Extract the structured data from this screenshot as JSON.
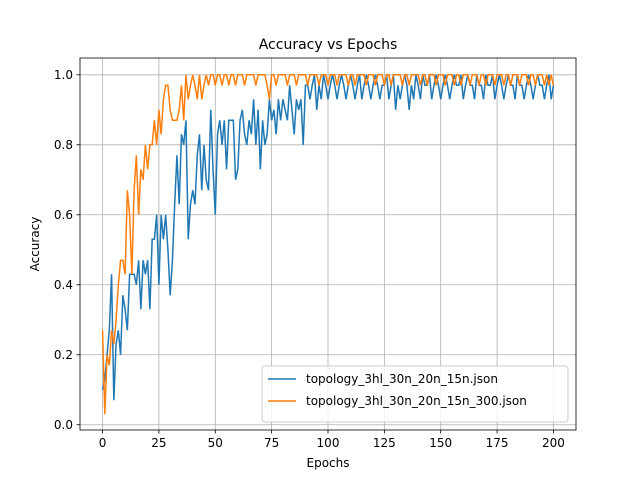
{
  "chart_data": {
    "type": "line",
    "title": "Accuracy vs Epochs",
    "x_label": "Epochs",
    "y_label": "Accuracy",
    "x": [
      0,
      1,
      2,
      3,
      4,
      5,
      6,
      7,
      8,
      9,
      10,
      11,
      12,
      13,
      14,
      15,
      16,
      17,
      18,
      19,
      20,
      21,
      22,
      23,
      24,
      25,
      26,
      27,
      28,
      29,
      30,
      31,
      32,
      33,
      34,
      35,
      36,
      37,
      38,
      39,
      40,
      41,
      42,
      43,
      44,
      45,
      46,
      47,
      48,
      49,
      50,
      51,
      52,
      53,
      54,
      55,
      56,
      57,
      58,
      59,
      60,
      61,
      62,
      63,
      64,
      65,
      66,
      67,
      68,
      69,
      70,
      71,
      72,
      73,
      74,
      75,
      76,
      77,
      78,
      79,
      80,
      81,
      82,
      83,
      84,
      85,
      86,
      87,
      88,
      89,
      90,
      91,
      92,
      93,
      94,
      95,
      96,
      97,
      98,
      99,
      100,
      101,
      102,
      103,
      104,
      105,
      106,
      107,
      108,
      109,
      110,
      111,
      112,
      113,
      114,
      115,
      116,
      117,
      118,
      119,
      120,
      121,
      122,
      123,
      124,
      125,
      126,
      127,
      128,
      129,
      130,
      131,
      132,
      133,
      134,
      135,
      136,
      137,
      138,
      139,
      140,
      141,
      142,
      143,
      144,
      145,
      146,
      147,
      148,
      149,
      150,
      151,
      152,
      153,
      154,
      155,
      156,
      157,
      158,
      159,
      160,
      161,
      162,
      163,
      164,
      165,
      166,
      167,
      168,
      169,
      170,
      171,
      172,
      173,
      174,
      175,
      176,
      177,
      178,
      179,
      180,
      181,
      182,
      183,
      184,
      185,
      186,
      187,
      188,
      189,
      190,
      191,
      192,
      193,
      194,
      195,
      196,
      197,
      198,
      199,
      200
    ],
    "series": [
      {
        "name": "topology_3hl_30n_20n_15n.json",
        "color": "#1f77b4",
        "values": [
          0.1,
          0.13,
          0.2,
          0.27,
          0.43,
          0.07,
          0.23,
          0.27,
          0.2,
          0.37,
          0.33,
          0.27,
          0.43,
          0.43,
          0.43,
          0.4,
          0.47,
          0.33,
          0.47,
          0.43,
          0.47,
          0.33,
          0.53,
          0.53,
          0.6,
          0.4,
          0.6,
          0.53,
          0.6,
          0.5,
          0.37,
          0.47,
          0.63,
          0.77,
          0.63,
          0.83,
          0.8,
          0.87,
          0.53,
          0.63,
          0.67,
          0.63,
          0.77,
          0.83,
          0.67,
          0.8,
          0.7,
          0.67,
          0.9,
          0.73,
          0.6,
          0.83,
          0.87,
          0.8,
          0.87,
          0.73,
          0.87,
          0.87,
          0.87,
          0.7,
          0.73,
          0.87,
          0.9,
          0.83,
          0.8,
          0.87,
          0.83,
          0.93,
          0.8,
          0.9,
          0.73,
          0.87,
          0.8,
          0.83,
          0.93,
          0.87,
          0.9,
          0.83,
          0.93,
          0.87,
          0.93,
          0.9,
          0.87,
          0.97,
          0.9,
          0.83,
          0.93,
          0.9,
          0.93,
          0.8,
          0.97,
          0.97,
          0.93,
          0.97,
          1.0,
          0.9,
          0.97,
          0.93,
          1.0,
          0.97,
          0.93,
          0.97,
          1.0,
          0.97,
          0.93,
          0.97,
          1.0,
          0.97,
          0.93,
          0.97,
          1.0,
          0.97,
          0.93,
          0.97,
          1.0,
          0.93,
          0.97,
          1.0,
          0.97,
          0.93,
          0.97,
          1.0,
          0.97,
          0.93,
          0.97,
          0.97,
          1.0,
          0.93,
          0.97,
          1.0,
          0.9,
          0.97,
          0.93,
          0.97,
          1.0,
          0.97,
          0.9,
          0.97,
          0.93,
          1.0,
          0.97,
          0.93,
          1.0,
          0.97,
          0.97,
          1.0,
          0.93,
          0.97,
          1.0,
          0.97,
          0.93,
          0.97,
          1.0,
          0.97,
          0.93,
          0.97,
          1.0,
          0.97,
          0.97,
          1.0,
          0.93,
          0.97,
          1.0,
          0.97,
          0.97,
          0.93,
          1.0,
          0.97,
          0.97,
          0.93,
          1.0,
          0.97,
          0.97,
          1.0,
          0.93,
          0.97,
          1.0,
          0.97,
          0.93,
          0.97,
          1.0,
          0.97,
          0.97,
          0.93,
          1.0,
          0.97,
          0.97,
          0.93,
          0.97,
          1.0,
          0.97,
          0.93,
          0.97,
          1.0,
          0.97,
          0.97,
          0.93,
          0.97,
          1.0,
          0.93,
          0.97
        ]
      },
      {
        "name": "topology_3hl_30n_20n_15n_300.json",
        "color": "#ff7f0e",
        "values": [
          0.27,
          0.03,
          0.2,
          0.17,
          0.27,
          0.23,
          0.3,
          0.4,
          0.47,
          0.47,
          0.43,
          0.67,
          0.6,
          0.43,
          0.67,
          0.77,
          0.6,
          0.73,
          0.7,
          0.8,
          0.73,
          0.8,
          0.8,
          0.87,
          0.8,
          0.9,
          0.83,
          0.93,
          0.97,
          0.97,
          0.9,
          0.87,
          0.87,
          0.87,
          0.9,
          0.97,
          0.87,
          1.0,
          0.93,
          0.97,
          1.0,
          0.97,
          0.93,
          1.0,
          0.93,
          0.97,
          1.0,
          0.97,
          1.0,
          1.0,
          0.97,
          1.0,
          1.0,
          0.97,
          1.0,
          1.0,
          0.97,
          1.0,
          1.0,
          0.97,
          1.0,
          1.0,
          1.0,
          0.97,
          1.0,
          1.0,
          1.0,
          1.0,
          0.97,
          1.0,
          1.0,
          1.0,
          1.0,
          0.97,
          0.93,
          1.0,
          1.0,
          0.97,
          1.0,
          1.0,
          1.0,
          1.0,
          0.97,
          1.0,
          1.0,
          1.0,
          0.97,
          1.0,
          1.0,
          1.0,
          1.0,
          0.97,
          1.0,
          1.0,
          1.0,
          1.0,
          0.97,
          1.0,
          1.0,
          1.0,
          0.97,
          1.0,
          1.0,
          1.0,
          0.97,
          1.0,
          1.0,
          1.0,
          1.0,
          0.97,
          1.0,
          1.0,
          0.97,
          1.0,
          1.0,
          1.0,
          1.0,
          0.97,
          1.0,
          1.0,
          1.0,
          0.97,
          1.0,
          1.0,
          1.0,
          0.97,
          1.0,
          1.0,
          0.97,
          1.0,
          1.0,
          1.0,
          1.0,
          0.97,
          1.0,
          1.0,
          0.97,
          1.0,
          1.0,
          1.0,
          1.0,
          0.97,
          1.0,
          1.0,
          0.97,
          1.0,
          1.0,
          1.0,
          0.97,
          1.0,
          1.0,
          1.0,
          0.97,
          1.0,
          1.0,
          1.0,
          0.97,
          1.0,
          1.0,
          0.97,
          1.0,
          1.0,
          1.0,
          0.97,
          1.0,
          1.0,
          1.0,
          0.97,
          1.0,
          1.0,
          0.97,
          1.0,
          1.0,
          1.0,
          0.97,
          1.0,
          1.0,
          1.0,
          0.97,
          1.0,
          1.0,
          0.97,
          1.0,
          1.0,
          1.0,
          0.97,
          1.0,
          1.0,
          1.0,
          0.97,
          1.0,
          1.0,
          0.97,
          1.0,
          1.0,
          1.0,
          0.97,
          1.0,
          0.97,
          1.0,
          0.97
        ]
      }
    ],
    "xlim": [
      -10,
      210
    ],
    "ylim": [
      -0.015,
      1.048
    ],
    "xticks": [
      0,
      25,
      50,
      75,
      100,
      125,
      150,
      175,
      200
    ],
    "yticks": [
      {
        "value": 0,
        "label": "0.0"
      },
      0.2,
      0.4,
      0.6,
      0.8,
      {
        "value": 1,
        "label": "1.0"
      }
    ],
    "grid": true,
    "legend": "lower right"
  }
}
